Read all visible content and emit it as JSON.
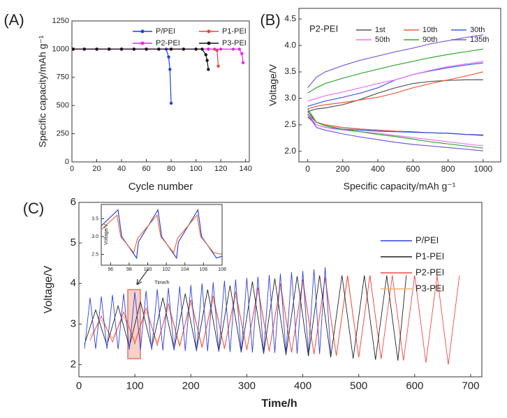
{
  "chart_data": [
    {
      "type": "line",
      "panel": "(A)",
      "markers": true,
      "legend": "upper center",
      "x_label": "Cycle number",
      "y_label": "Specific capacity/mAh g⁻¹",
      "xlim": [
        0,
        143
      ],
      "xticks": [
        0,
        20,
        40,
        60,
        80,
        100,
        120,
        140
      ],
      "ylim": [
        0,
        1250
      ],
      "yticks": [
        0,
        250,
        500,
        750,
        1000,
        1250
      ],
      "series": [
        {
          "name": "P/PEI",
          "color": "#1f3fe0",
          "x": [
            1,
            10,
            20,
            30,
            40,
            50,
            60,
            70,
            76,
            78,
            79,
            80
          ],
          "values": [
            1000,
            1000,
            1000,
            1000,
            1000,
            1000,
            1000,
            1000,
            1000,
            930,
            820,
            520
          ]
        },
        {
          "name": "P1-PEI",
          "color": "#f04040",
          "x": [
            1,
            10,
            20,
            30,
            40,
            50,
            60,
            70,
            80,
            90,
            100,
            110,
            115,
            117,
            118
          ],
          "values": [
            1000,
            1000,
            1000,
            1000,
            1000,
            1000,
            1000,
            1000,
            1000,
            1000,
            1000,
            1000,
            1000,
            990,
            850
          ]
        },
        {
          "name": "P2-PEI",
          "color": "#ee22ee",
          "x": [
            1,
            10,
            20,
            30,
            40,
            50,
            60,
            70,
            80,
            90,
            100,
            110,
            120,
            130,
            135,
            137,
            138
          ],
          "values": [
            1000,
            1000,
            1000,
            1000,
            1000,
            1000,
            1000,
            1000,
            1000,
            1000,
            1000,
            1000,
            1000,
            1000,
            1000,
            960,
            880
          ]
        },
        {
          "name": "P3-PEI",
          "color": "#111111",
          "x": [
            1,
            10,
            20,
            30,
            40,
            50,
            60,
            70,
            80,
            90,
            100,
            105,
            108,
            109,
            110
          ],
          "values": [
            1000,
            1000,
            1000,
            1000,
            1000,
            1000,
            1000,
            1000,
            1000,
            1000,
            1000,
            1000,
            950,
            900,
            820
          ]
        }
      ]
    },
    {
      "type": "line",
      "panel": "(B)",
      "annotation": "P2-PEI",
      "legend": "upper right",
      "x_label": "Specific capacity/mAh g⁻¹",
      "y_label": "Voltage/V",
      "xlim": [
        -50,
        1100
      ],
      "xticks": [
        0,
        200,
        400,
        600,
        800,
        1000
      ],
      "ylim": [
        1.8,
        4.7
      ],
      "yticks": [
        {
          "value": 2,
          "label": "2.0"
        },
        2.5,
        {
          "value": 3,
          "label": "3.0"
        },
        3.5,
        {
          "value": 4,
          "label": "4.0"
        },
        4.5
      ],
      "x": [
        0,
        50,
        100,
        200,
        300,
        400,
        500,
        600,
        700,
        800,
        900,
        1000,
        null,
        0,
        50,
        100,
        200,
        300,
        400,
        500,
        600,
        700,
        800,
        900,
        1000
      ],
      "series": [
        {
          "name": "1st",
          "color": "#555555",
          "values": [
            2.75,
            2.8,
            2.82,
            2.88,
            2.98,
            3.1,
            3.2,
            3.28,
            3.32,
            3.34,
            3.35,
            3.35,
            null,
            2.75,
            2.55,
            2.5,
            2.45,
            2.42,
            2.4,
            2.38,
            2.37,
            2.35,
            2.34,
            2.32,
            2.3
          ]
        },
        {
          "name": "10th",
          "color": "#f05a3c",
          "values": [
            2.8,
            2.85,
            2.88,
            2.92,
            2.97,
            3.02,
            3.1,
            3.2,
            3.28,
            3.35,
            3.42,
            3.5,
            null,
            2.7,
            2.55,
            2.5,
            2.45,
            2.42,
            2.4,
            2.38,
            2.36,
            2.35,
            2.34,
            2.32,
            2.31
          ]
        },
        {
          "name": "30th",
          "color": "#3a5ae8",
          "values": [
            2.85,
            2.9,
            2.95,
            3.02,
            3.1,
            3.2,
            3.35,
            3.45,
            3.52,
            3.58,
            3.63,
            3.67,
            null,
            2.65,
            2.5,
            2.45,
            2.42,
            2.4,
            2.38,
            2.37,
            2.36,
            2.35,
            2.34,
            2.32,
            2.31
          ]
        },
        {
          "name": "50th",
          "color": "#f070f0",
          "values": [
            2.95,
            3.0,
            3.05,
            3.12,
            3.2,
            3.28,
            3.35,
            3.45,
            3.53,
            3.6,
            3.65,
            3.7,
            null,
            2.7,
            2.5,
            2.45,
            2.4,
            2.37,
            2.34,
            2.3,
            2.26,
            2.22,
            2.18,
            2.14,
            2.1
          ]
        },
        {
          "name": "90th",
          "color": "#2ea82e",
          "values": [
            3.1,
            3.2,
            3.28,
            3.38,
            3.47,
            3.55,
            3.63,
            3.7,
            3.77,
            3.83,
            3.88,
            3.93,
            null,
            2.8,
            2.55,
            2.48,
            2.42,
            2.37,
            2.32,
            2.28,
            2.23,
            2.18,
            2.14,
            2.1,
            2.06
          ]
        },
        {
          "name": "135th",
          "color": "#7a5ad8",
          "values": [
            3.2,
            3.4,
            3.5,
            3.62,
            3.72,
            3.8,
            3.88,
            3.95,
            4.03,
            4.09,
            4.15,
            4.2,
            null,
            2.7,
            2.45,
            2.4,
            2.33,
            2.27,
            2.22,
            2.17,
            2.13,
            2.1,
            2.07,
            2.04,
            2.01
          ]
        }
      ]
    },
    {
      "type": "line",
      "panel": "(C)",
      "legend": "center right",
      "x_label": "Time/h",
      "y_label": "Voltage/V",
      "xlim": [
        0,
        720
      ],
      "xticks": [
        0,
        100,
        200,
        300,
        400,
        500,
        600,
        700
      ],
      "ylim": [
        1.7,
        6
      ],
      "yticks": [
        2,
        3,
        4,
        5,
        6
      ],
      "series": [
        {
          "name": "P/PEI",
          "color": "#3040e0",
          "x": [
            10,
            20,
            30,
            40,
            50,
            60,
            70,
            80,
            90,
            100,
            110,
            120,
            130,
            140,
            150,
            160,
            170,
            180,
            190,
            200,
            210,
            220,
            230,
            240,
            250,
            260,
            270,
            280,
            290,
            300,
            310,
            320,
            330,
            340,
            350,
            360,
            370,
            380,
            390,
            400,
            410,
            420,
            430,
            440,
            450
          ],
          "values": [
            2.4,
            3.65,
            2.39,
            3.68,
            2.39,
            3.72,
            2.38,
            3.75,
            2.37,
            3.79,
            2.37,
            3.82,
            2.36,
            3.86,
            2.35,
            3.89,
            2.35,
            3.93,
            2.34,
            3.96,
            2.33,
            4.0,
            2.33,
            4.03,
            2.32,
            4.07,
            2.31,
            4.1,
            2.31,
            4.14,
            2.3,
            4.17,
            2.29,
            4.21,
            2.29,
            4.24,
            2.28,
            4.28,
            2.27,
            4.31,
            2.27,
            4.35,
            2.26,
            4.4,
            2.25
          ]
        },
        {
          "name": "P1-PEI",
          "color": "#222222",
          "x": [
            10,
            30,
            50,
            70,
            90,
            110,
            130,
            150,
            170,
            190,
            210,
            230,
            250,
            270,
            290,
            310,
            330,
            350,
            370,
            390,
            410,
            430,
            450,
            470,
            490,
            510,
            530,
            550,
            570,
            585
          ],
          "values": [
            2.5,
            3.35,
            2.47,
            3.45,
            2.44,
            3.55,
            2.41,
            3.65,
            2.38,
            3.75,
            2.35,
            3.85,
            2.33,
            3.95,
            2.3,
            4.05,
            2.27,
            4.12,
            2.24,
            4.18,
            2.21,
            4.2,
            2.18,
            4.2,
            2.15,
            4.2,
            2.12,
            4.2,
            2.1,
            4.2
          ]
        },
        {
          "name": "P2-PEI",
          "color": "#f04848",
          "x": [
            20,
            40,
            60,
            80,
            100,
            120,
            140,
            160,
            180,
            200,
            220,
            240,
            260,
            280,
            300,
            320,
            340,
            360,
            380,
            400,
            420,
            440,
            460,
            480,
            500,
            520,
            540,
            560,
            580,
            600,
            620,
            640,
            660,
            680
          ],
          "values": [
            2.6,
            3.2,
            2.56,
            3.3,
            2.52,
            3.4,
            2.48,
            3.5,
            2.45,
            3.6,
            2.42,
            3.7,
            2.39,
            3.8,
            2.36,
            3.9,
            2.33,
            4.0,
            2.3,
            4.1,
            2.26,
            4.15,
            2.22,
            4.2,
            2.18,
            4.2,
            2.14,
            4.2,
            2.1,
            4.2,
            2.05,
            4.2,
            2.0,
            4.2
          ]
        },
        {
          "name": "P3-PEI",
          "color": "#f5b060",
          "x": [
            20,
            40,
            60,
            80,
            100,
            120,
            140,
            160,
            180,
            200,
            220,
            240,
            260,
            280,
            300,
            320,
            340,
            360,
            380,
            400,
            420,
            440,
            460,
            480,
            500,
            520,
            540
          ],
          "values": [
            2.7,
            3.1,
            2.65,
            3.2,
            2.6,
            3.3,
            2.55,
            3.4,
            2.5,
            3.5,
            2.46,
            3.6,
            2.42,
            3.7,
            2.38,
            3.8,
            2.34,
            3.9,
            2.3,
            4.0,
            2.26,
            4.1,
            2.22,
            4.15,
            2.18,
            4.2,
            2.15
          ]
        }
      ]
    },
    {
      "type": "line",
      "x_label": "Time/h",
      "y_label": "Voltage/V",
      "xlim": [
        95,
        108
      ],
      "xticks": [
        96,
        98,
        100,
        102,
        104,
        106,
        108
      ],
      "ylim": [
        2.2,
        3.9
      ],
      "yticks": [
        2.5,
        {
          "value": 3,
          "label": "3.0"
        },
        3.5
      ],
      "series": [
        {
          "color": "#3040e0",
          "x": [
            95,
            96.8,
            97.2,
            98.8,
            99.0,
            101.1,
            101.5,
            103.1,
            103.3,
            105.4,
            105.8,
            107.4,
            108
          ],
          "values": [
            3.3,
            3.75,
            3.0,
            2.4,
            2.85,
            3.75,
            3.0,
            2.4,
            2.85,
            3.75,
            3.0,
            2.4,
            2.45
          ]
        },
        {
          "color": "#e8703a",
          "x": [
            95,
            96.7,
            97.1,
            98.5,
            98.9,
            101.0,
            101.4,
            102.8,
            103.2,
            105.3,
            105.7,
            107.1,
            108
          ],
          "values": [
            3.2,
            3.6,
            3.0,
            2.55,
            2.95,
            3.6,
            3.0,
            2.55,
            2.95,
            3.6,
            3.0,
            2.55,
            2.5
          ]
        }
      ]
    }
  ]
}
